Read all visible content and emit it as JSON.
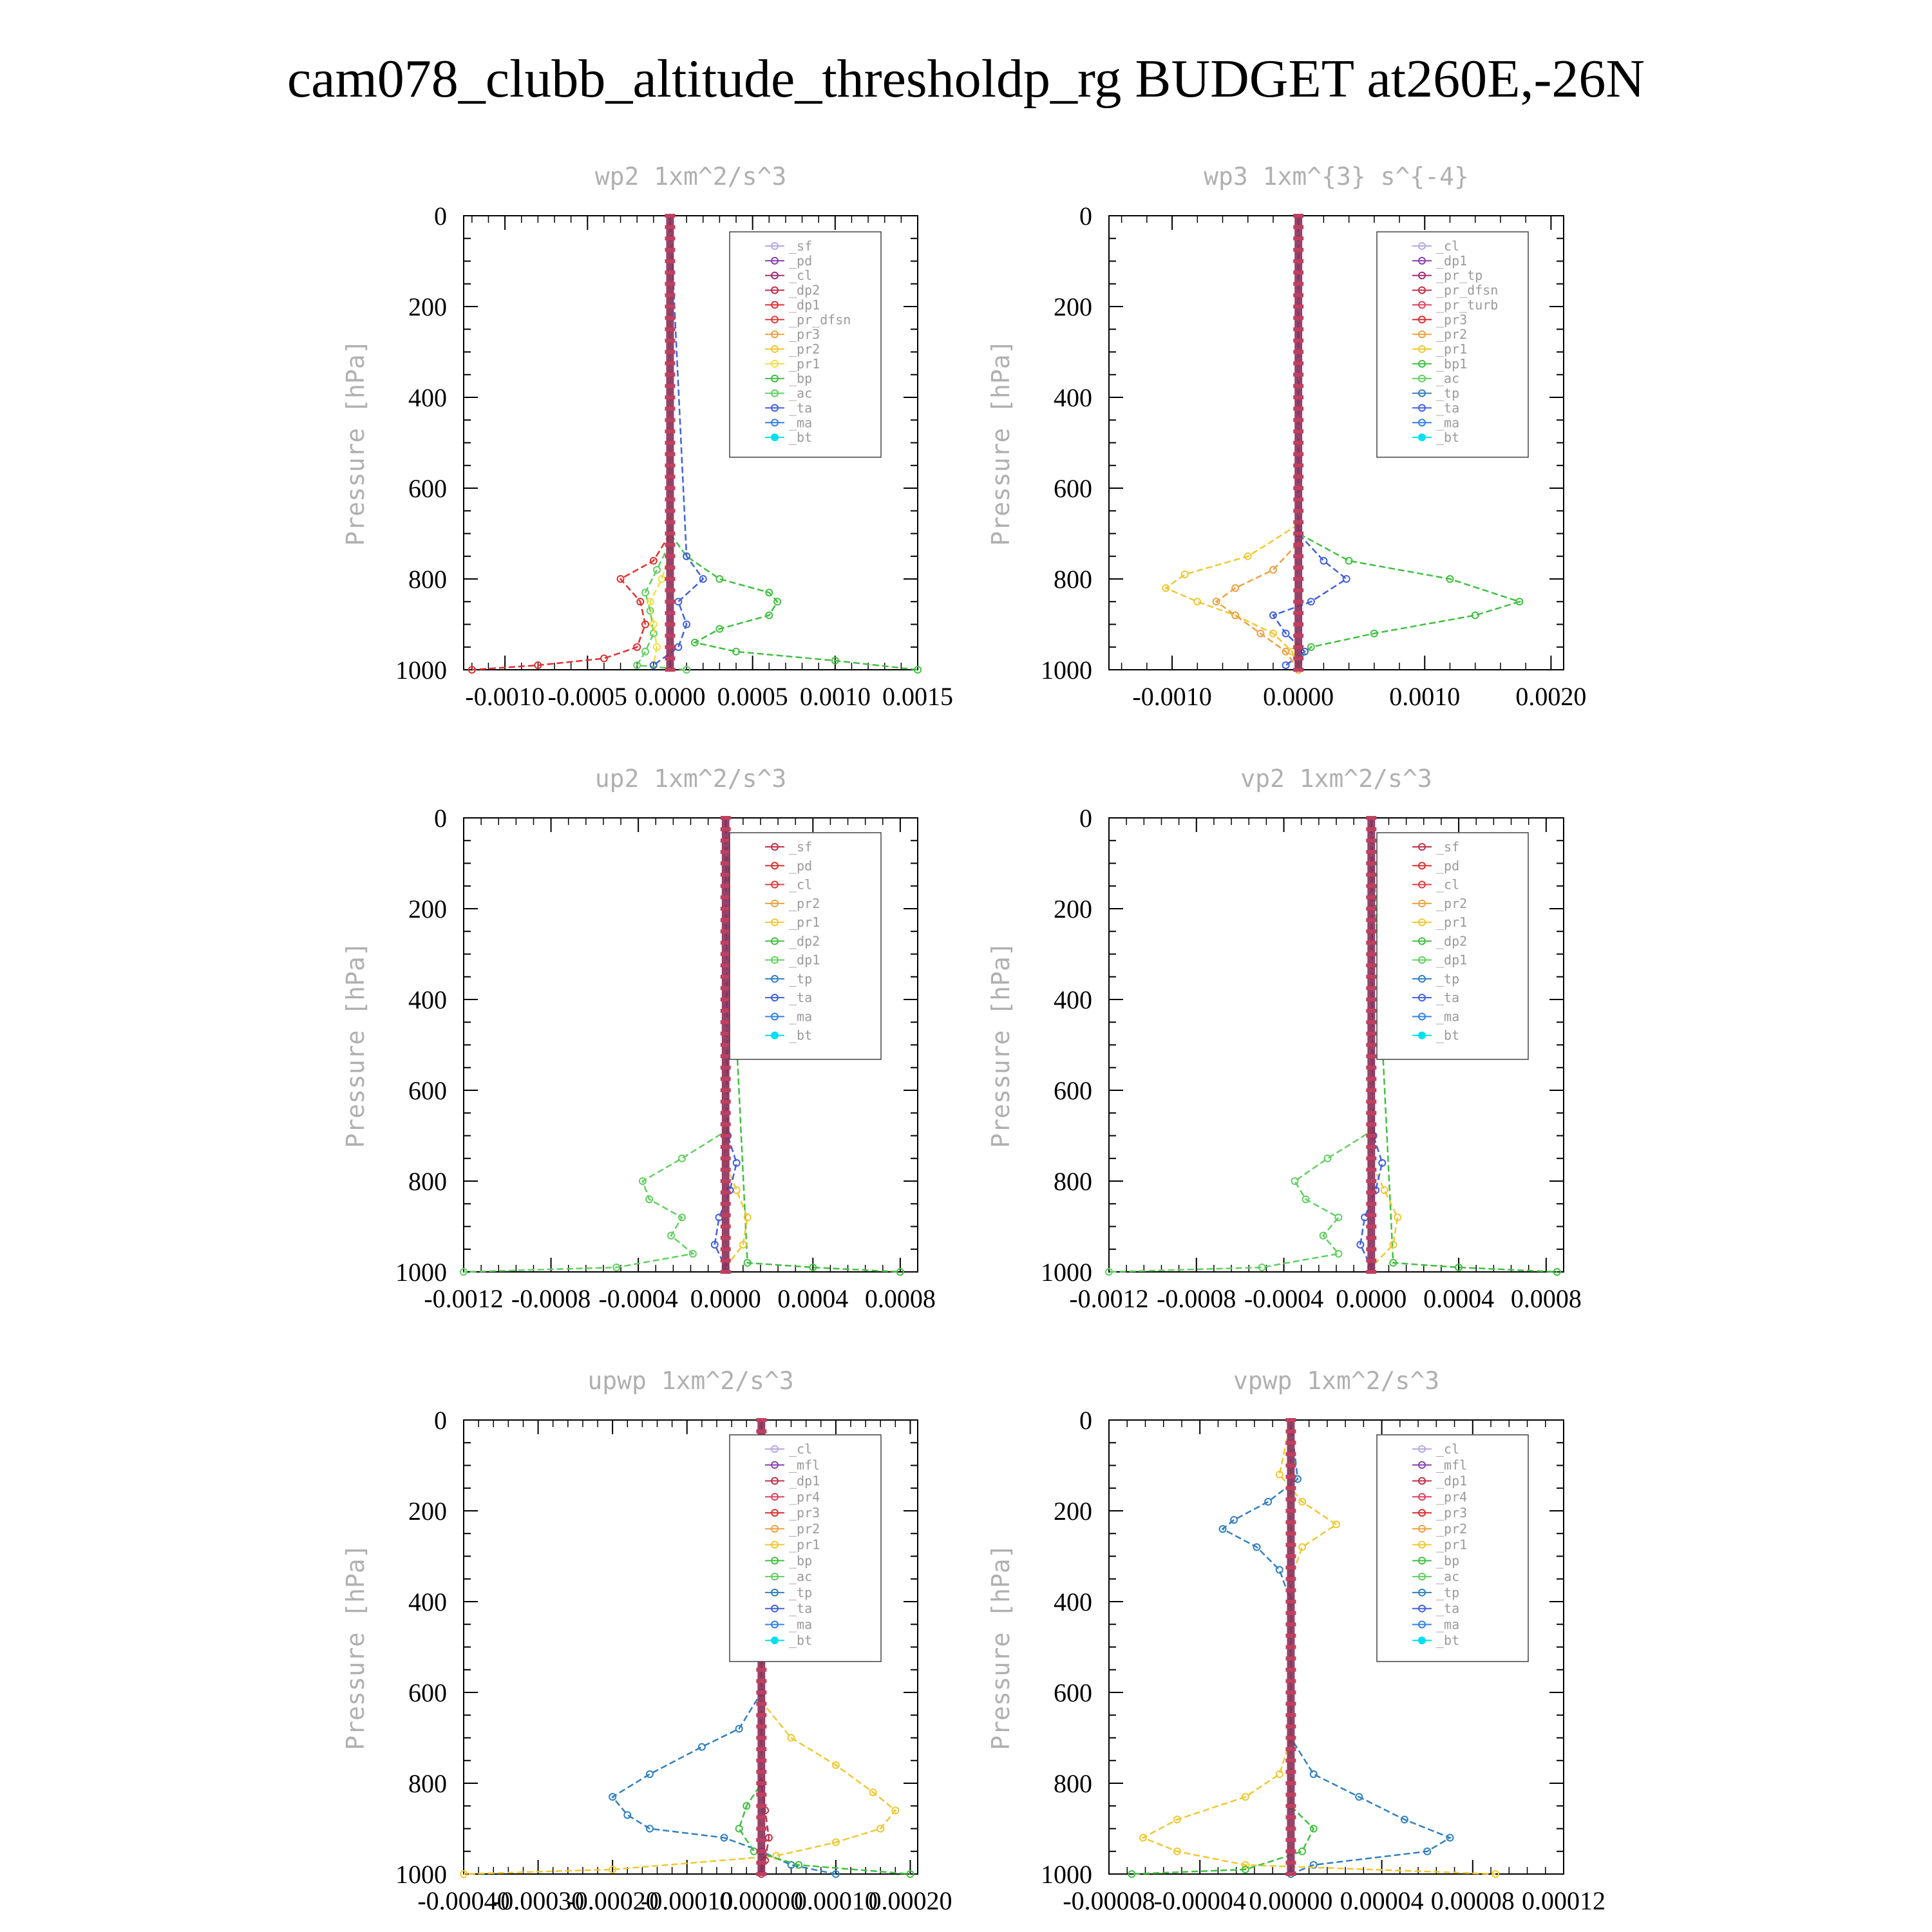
{
  "figure_title": "cam078_clubb_altitude_thresholdp_rg  BUDGET at260E,-26N",
  "y_axis_label": "Pressure [hPa]",
  "y_ticks": [
    "0",
    "200",
    "400",
    "600",
    "800",
    "1000"
  ],
  "chart_data": [
    {
      "type": "line",
      "title": "wp2  1xm^2/s^3",
      "ylabel": "Pressure [hPa]",
      "ylim": [
        1000,
        0
      ],
      "xlim": [
        -0.00125,
        0.0015
      ],
      "xticks": [
        "-0.0010",
        "-0.0005",
        "0.0000",
        "0.0005",
        "0.0010",
        "0.0015"
      ],
      "xtick_values": [
        -0.001,
        -0.0005,
        0,
        0.0005,
        0.001,
        0.0015
      ],
      "legend": [
        "_sf",
        "_pd",
        "_cl",
        "_dp2",
        "_dp1",
        "_pr_dfsn",
        "_pr3",
        "_pr2",
        "_pr1",
        "_bp",
        "_ac",
        "_ta",
        "_ma",
        "_bt"
      ],
      "legend_colors": [
        "#b9a8e0",
        "#8a3fb0",
        "#a0306e",
        "#c0304a",
        "#e03030",
        "#e04040",
        "#f0a040",
        "#f0c830",
        "#f0e040",
        "#40c040",
        "#60d060",
        "#4060e0",
        "#3080f0",
        "#00e0f0"
      ],
      "series": [
        {
          "name": "_dp1",
          "color": "#e03030",
          "p": [
            700,
            760,
            800,
            850,
            900,
            950,
            975,
            990,
            1000
          ],
          "values": [
            0,
            -0.0001,
            -0.0003,
            -0.00018,
            -0.00015,
            -0.0002,
            -0.0004,
            -0.0008,
            -0.0012
          ]
        },
        {
          "name": "_bp",
          "color": "#40c040",
          "p": [
            700,
            750,
            800,
            830,
            850,
            880,
            910,
            940,
            960,
            980,
            1000
          ],
          "values": [
            0,
            0.0001,
            0.0003,
            0.0006,
            0.00065,
            0.0006,
            0.0003,
            0.00015,
            0.0004,
            0.001,
            0.0015
          ]
        },
        {
          "name": "_ac",
          "color": "#60d060",
          "p": [
            720,
            780,
            830,
            870,
            920,
            960,
            990,
            1000
          ],
          "values": [
            0,
            -8e-05,
            -0.00015,
            -0.00012,
            -0.0001,
            -0.00015,
            -0.0002,
            0.0001
          ]
        },
        {
          "name": "_pr1",
          "color": "#f0e040",
          "p": [
            740,
            800,
            850,
            900,
            950,
            990
          ],
          "values": [
            0,
            -5e-05,
            -0.00012,
            -0.0001,
            -8e-05,
            -0.0001
          ]
        },
        {
          "name": "_ta",
          "color": "#4060e0",
          "p": [
            750,
            800,
            850,
            900,
            950,
            990
          ],
          "values": [
            0.0001,
            0.0002,
            5e-05,
            0.0001,
            5e-05,
            -0.0001
          ]
        }
      ]
    },
    {
      "type": "line",
      "title": "wp3  1xm^{3} s^{-4}",
      "ylabel": "Pressure [hPa]",
      "ylim": [
        1000,
        0
      ],
      "xlim": [
        -0.0015,
        0.0021
      ],
      "xticks": [
        "-0.0010",
        "0.0000",
        "0.0010",
        "0.0020"
      ],
      "xtick_values": [
        -0.001,
        0,
        0.001,
        0.002
      ],
      "legend": [
        "_cl",
        "_dp1",
        "_pr_tp",
        "_pr_dfsn",
        "_pr_turb",
        "_pr3",
        "_pr2",
        "_pr1",
        "_bp1",
        "_ac",
        "_tp",
        "_ta",
        "_ma",
        "_bt"
      ],
      "legend_colors": [
        "#b9a8e0",
        "#8a3fb0",
        "#a0306e",
        "#c0304a",
        "#e04060",
        "#e03030",
        "#f0a040",
        "#f0c830",
        "#40c040",
        "#60d060",
        "#3080c0",
        "#4060e0",
        "#3080f0",
        "#00e0f0"
      ],
      "series": [
        {
          "name": "_pr1",
          "color": "#f0c830",
          "p": [
            680,
            750,
            790,
            820,
            850,
            880,
            920,
            960,
            1000
          ],
          "values": [
            0,
            -0.0004,
            -0.0009,
            -0.00105,
            -0.0008,
            -0.0005,
            -0.0002,
            -5e-05,
            0
          ]
        },
        {
          "name": "_bp1",
          "color": "#40c040",
          "p": [
            700,
            760,
            800,
            850,
            880,
            920,
            950,
            980,
            1000
          ],
          "values": [
            0,
            0.0004,
            0.0012,
            0.00175,
            0.0014,
            0.0006,
            0.0001,
            0,
            0
          ]
        },
        {
          "name": "_pr2",
          "color": "#f0a040",
          "p": [
            720,
            780,
            820,
            850,
            880,
            920,
            960,
            1000
          ],
          "values": [
            0,
            -0.0002,
            -0.0005,
            -0.00065,
            -0.0005,
            -0.0003,
            -0.0001,
            0
          ]
        },
        {
          "name": "_ta",
          "color": "#4060e0",
          "p": [
            700,
            760,
            800,
            850,
            880,
            920,
            960,
            990
          ],
          "values": [
            0,
            0.0002,
            0.00038,
            0.0001,
            -0.0002,
            -0.0001,
            5e-05,
            -0.0001
          ]
        }
      ]
    },
    {
      "type": "line",
      "title": "up2  1xm^2/s^3",
      "ylabel": "Pressure [hPa]",
      "ylim": [
        1000,
        0
      ],
      "xlim": [
        -0.0012,
        0.00088
      ],
      "xticks": [
        "-0.0012",
        "-0.0008",
        "-0.0004",
        "0.0000",
        "0.0004",
        "0.0008"
      ],
      "xtick_values": [
        -0.0012,
        -0.0008,
        -0.0004,
        0,
        0.0004,
        0.0008
      ],
      "legend": [
        "_sf",
        "_pd",
        "_cl",
        "_pr2",
        "_pr1",
        "_dp2",
        "_dp1",
        "_tp",
        "_ta",
        "_ma",
        "_bt"
      ],
      "legend_colors": [
        "#c0304a",
        "#e03030",
        "#e04040",
        "#f0a040",
        "#f0c830",
        "#40c040",
        "#60d060",
        "#3080c0",
        "#4060e0",
        "#3080f0",
        "#00e0f0"
      ],
      "series": [
        {
          "name": "_dp1",
          "color": "#60d060",
          "p": [
            690,
            750,
            800,
            840,
            880,
            920,
            960,
            990,
            1000
          ],
          "values": [
            0,
            -0.0002,
            -0.00038,
            -0.00035,
            -0.0002,
            -0.00025,
            -0.00015,
            -0.0005,
            -0.0012
          ]
        },
        {
          "name": "_dp2",
          "color": "#40c040",
          "p": [
            980,
            990,
            1000
          ],
          "values": [
            0.0001,
            0.0004,
            0.0008
          ]
        },
        {
          "name": "_pr1",
          "color": "#f0c830",
          "p": [
            760,
            820,
            880,
            940,
            990
          ],
          "values": [
            0,
            5e-05,
            0.0001,
            8e-05,
            0
          ]
        },
        {
          "name": "_ta",
          "color": "#4060e0",
          "p": [
            700,
            760,
            820,
            880,
            940,
            990
          ],
          "values": [
            1e-05,
            5e-05,
            2e-05,
            -3e-05,
            -5e-05,
            0
          ]
        }
      ]
    },
    {
      "type": "line",
      "title": "vp2  1xm^2/s^3",
      "ylabel": "Pressure [hPa]",
      "ylim": [
        1000,
        0
      ],
      "xlim": [
        -0.0012,
        0.00088
      ],
      "xticks": [
        "-0.0012",
        "-0.0008",
        "-0.0004",
        "0.0000",
        "0.0004",
        "0.0008"
      ],
      "xtick_values": [
        -0.0012,
        -0.0008,
        -0.0004,
        0,
        0.0004,
        0.0008
      ],
      "legend": [
        "_sf",
        "_pd",
        "_cl",
        "_pr2",
        "_pr1",
        "_dp2",
        "_dp1",
        "_tp",
        "_ta",
        "_ma",
        "_bt"
      ],
      "legend_colors": [
        "#c0304a",
        "#e03030",
        "#e04040",
        "#f0a040",
        "#f0c830",
        "#40c040",
        "#60d060",
        "#3080c0",
        "#4060e0",
        "#3080f0",
        "#00e0f0"
      ],
      "series": [
        {
          "name": "_dp1",
          "color": "#60d060",
          "p": [
            690,
            750,
            800,
            840,
            880,
            920,
            960,
            990,
            1000
          ],
          "values": [
            0,
            -0.0002,
            -0.00035,
            -0.0003,
            -0.00015,
            -0.00022,
            -0.00015,
            -0.0005,
            -0.0012
          ]
        },
        {
          "name": "_dp2",
          "color": "#40c040",
          "p": [
            980,
            990,
            1000
          ],
          "values": [
            0.0001,
            0.0004,
            0.00085
          ]
        },
        {
          "name": "_pr1",
          "color": "#f0c830",
          "p": [
            760,
            820,
            880,
            940,
            990
          ],
          "values": [
            0,
            6e-05,
            0.00012,
            0.0001,
            0
          ]
        },
        {
          "name": "_ta",
          "color": "#4060e0",
          "p": [
            700,
            760,
            820,
            880,
            940,
            990
          ],
          "values": [
            1e-05,
            5e-05,
            2e-05,
            -3e-05,
            -5e-05,
            0
          ]
        }
      ]
    },
    {
      "type": "line",
      "title": "upwp  1xm^2/s^3",
      "ylabel": "Pressure [hPa]",
      "ylim": [
        1000,
        0
      ],
      "xlim": [
        -0.0004,
        0.00021
      ],
      "xticks": [
        "-0.00040",
        "-0.00030",
        "-0.00020",
        "-0.00010",
        "0.00000",
        "0.00010",
        "0.00020"
      ],
      "xtick_values": [
        -0.0004,
        -0.0003,
        -0.0002,
        -0.0001,
        0,
        0.0001,
        0.0002
      ],
      "legend": [
        "_cl",
        "_mfl",
        "_dp1",
        "_pr4",
        "_pr3",
        "_pr2",
        "_pr1",
        "_bp",
        "_ac",
        "_tp",
        "_ta",
        "_ma",
        "_bt"
      ],
      "legend_colors": [
        "#b9a8e0",
        "#8a3fb0",
        "#c0304a",
        "#e04060",
        "#e03030",
        "#f0a040",
        "#f0c830",
        "#40c040",
        "#60d060",
        "#3080c0",
        "#4060e0",
        "#3080f0",
        "#00e0f0"
      ],
      "series": [
        {
          "name": "_tp",
          "color": "#3080c0",
          "p": [
            600,
            680,
            720,
            780,
            830,
            870,
            900,
            920,
            950,
            980,
            1000
          ],
          "values": [
            0,
            -3e-05,
            -8e-05,
            -0.00015,
            -0.0002,
            -0.00018,
            -0.00015,
            -5e-05,
            0,
            4e-05,
            0.0001
          ]
        },
        {
          "name": "_pr1",
          "color": "#f0c830",
          "p": [
            620,
            700,
            760,
            820,
            860,
            900,
            930,
            960,
            990,
            1000
          ],
          "values": [
            0,
            4e-05,
            0.0001,
            0.00015,
            0.00018,
            0.00016,
            0.0001,
            2e-05,
            -0.0002,
            -0.0004
          ]
        },
        {
          "name": "_bp",
          "color": "#40c040",
          "p": [
            800,
            850,
            900,
            950,
            980,
            1000
          ],
          "values": [
            0,
            -2e-05,
            -3e-05,
            -1e-05,
            5e-05,
            0.0002
          ]
        },
        {
          "name": "_dp1",
          "color": "#c0304a",
          "p": [
            800,
            860,
            920,
            970,
            1000
          ],
          "values": [
            0,
            5e-06,
            1e-05,
            5e-06,
            0
          ]
        }
      ]
    },
    {
      "type": "line",
      "title": "vpwp  1xm^2/s^3",
      "ylabel": "Pressure [hPa]",
      "ylim": [
        1000,
        0
      ],
      "xlim": [
        -8e-05,
        0.00012
      ],
      "xticks": [
        "-0.00008",
        "-0.00004",
        "0.00000",
        "0.00004",
        "0.00008",
        "0.00012"
      ],
      "xtick_values": [
        -8e-05,
        -4e-05,
        0,
        4e-05,
        8e-05,
        0.00012
      ],
      "legend": [
        "_cl",
        "_mfl",
        "_dp1",
        "_pr4",
        "_pr3",
        "_pr2",
        "_pr1",
        "_bp",
        "_ac",
        "_tp",
        "_ta",
        "_ma",
        "_bt"
      ],
      "legend_colors": [
        "#b9a8e0",
        "#8a3fb0",
        "#c0304a",
        "#e04060",
        "#e03030",
        "#f0a040",
        "#f0c830",
        "#40c040",
        "#60d060",
        "#3080c0",
        "#4060e0",
        "#3080f0",
        "#00e0f0"
      ],
      "series": [
        {
          "name": "_tp",
          "color": "#3080c0",
          "p": [
            130,
            180,
            220,
            240,
            280,
            330,
            400,
            700,
            780,
            830,
            880,
            920,
            950,
            980,
            1000
          ],
          "values": [
            3e-06,
            -1e-05,
            -2.5e-05,
            -3e-05,
            -1.5e-05,
            -5e-06,
            0,
            0,
            1e-05,
            3e-05,
            5e-05,
            7e-05,
            6e-05,
            1e-05,
            0
          ]
        },
        {
          "name": "_pr1",
          "color": "#f0c830",
          "p": [
            120,
            180,
            230,
            280,
            350,
            700,
            780,
            830,
            880,
            920,
            950,
            980,
            1000
          ],
          "values": [
            -5e-06,
            5e-06,
            2e-05,
            5e-06,
            0,
            0,
            -5e-06,
            -2e-05,
            -5e-05,
            -6.5e-05,
            -5e-05,
            -2e-05,
            9e-05
          ]
        },
        {
          "name": "_bp",
          "color": "#40c040",
          "p": [
            850,
            900,
            950,
            990,
            1000
          ],
          "values": [
            0,
            1e-05,
            5e-06,
            -2e-05,
            -7e-05
          ]
        }
      ]
    }
  ]
}
